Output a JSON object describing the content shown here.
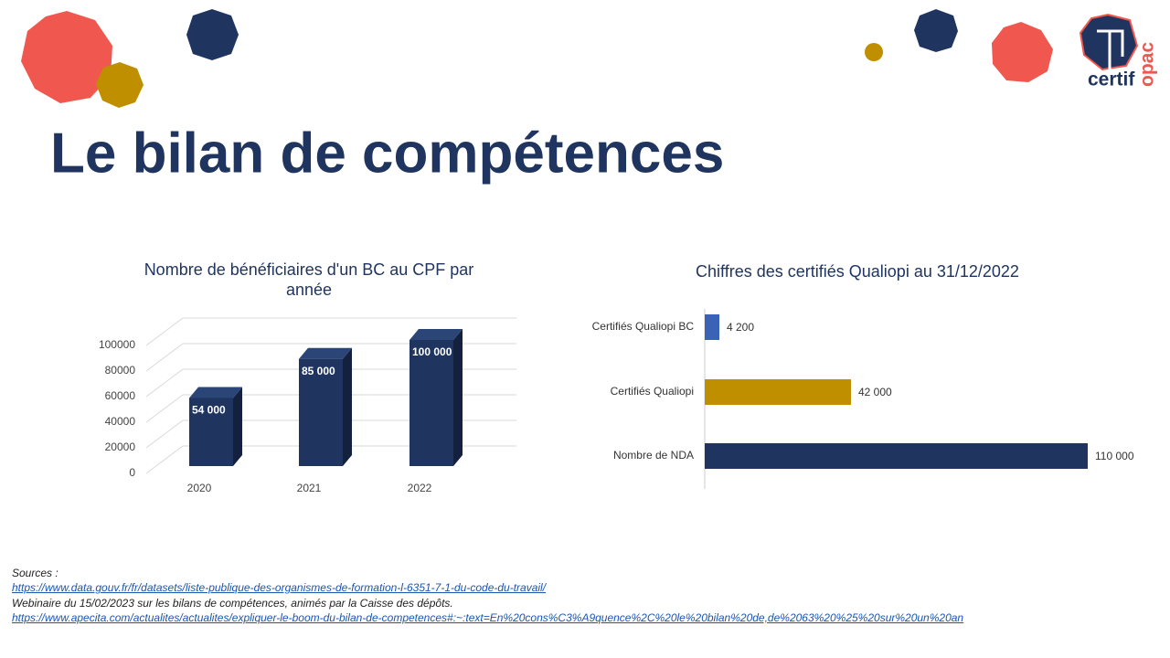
{
  "title": "Le bilan de compétences",
  "logo": {
    "part1": "certif",
    "part2": "opac"
  },
  "chart_data": [
    {
      "type": "bar3d",
      "title": "Nombre de bénéficiaires d'un BC au CPF par année",
      "categories": [
        "2020",
        "2021",
        "2022"
      ],
      "values": [
        54000,
        85000,
        100000
      ],
      "value_labels": [
        "54 000",
        "85 000",
        "100 000"
      ],
      "color": "#1f3560",
      "ylim": [
        0,
        100000
      ],
      "yticks": [
        0,
        20000,
        40000,
        60000,
        80000,
        100000
      ],
      "grid": true
    },
    {
      "type": "hbar",
      "title": "Chiffres des certifiés Qualiopi au 31/12/2022",
      "categories": [
        "Certifiés Qualiopi BC",
        "Certifiés Qualiopi",
        "Nombre de NDA"
      ],
      "values": [
        4200,
        42000,
        110000
      ],
      "value_labels": [
        "4 200",
        "42 000",
        "110 000"
      ],
      "colors": [
        "#3a62b5",
        "#c08f00",
        "#1f3560"
      ]
    }
  ],
  "sources": {
    "label": "Sources :",
    "lines": [
      "https://www.data.gouv.fr/fr/datasets/liste-publique-des-organismes-de-formation-l-6351-7-1-du-code-du-travail/",
      "Webinaire du 15/02/2023 sur les bilans de compétences, animés par la Caisse des dépôts.",
      "https://www.apecita.com/actualites/actualites/expliquer-le-boom-du-bilan-de-competences#:~:text=En%20cons%C3%A9quence%2C%20le%20bilan%20de,de%2063%20%25%20sur%20un%20an"
    ]
  }
}
